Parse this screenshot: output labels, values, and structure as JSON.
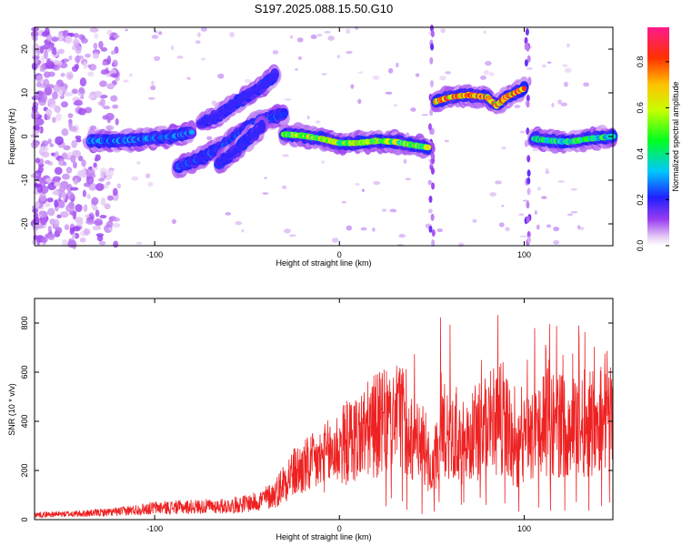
{
  "chart_data": [
    {
      "type": "heatmap",
      "title": "S197.2025.088.15.50.G10",
      "xlabel": "Height of straight line (km)",
      "ylabel": "Frequency (Hz)",
      "xlim": [
        -165,
        148
      ],
      "ylim": [
        -25,
        25
      ],
      "xticks": [
        -100,
        0,
        100
      ],
      "yticks": [
        -20,
        -10,
        0,
        10,
        20
      ],
      "colorbar": {
        "label": "Normalized spectral amplitude",
        "range": [
          0,
          0.95
        ],
        "ticks": [
          0.0,
          0.2,
          0.4,
          0.6,
          0.8
        ]
      },
      "ridges": [
        {
          "x": [
            -135,
            -120,
            -105,
            -90,
            -80
          ],
          "y": [
            -1,
            -1,
            -0.5,
            0,
            1
          ],
          "intensity": 0.3
        },
        {
          "x": [
            -88,
            -75,
            -62,
            -50,
            -40,
            -30
          ],
          "y": [
            -7,
            -5,
            -2,
            2,
            4,
            5
          ],
          "intensity": 0.25
        },
        {
          "x": [
            -65,
            -55,
            -48,
            -42
          ],
          "y": [
            -6,
            -3,
            0,
            2
          ],
          "intensity": 0.2
        },
        {
          "x": [
            -75,
            -65,
            -55,
            -40,
            -35
          ],
          "y": [
            3,
            5,
            8,
            12,
            14
          ],
          "intensity": 0.12
        },
        {
          "x": [
            -30,
            -20,
            -10,
            0,
            10,
            20,
            30,
            40,
            48
          ],
          "y": [
            0.5,
            0.2,
            -0.5,
            -1.5,
            -1.5,
            -1.0,
            -1.2,
            -2.0,
            -2.5
          ],
          "intensity": 0.65
        },
        {
          "x": [
            52,
            60,
            70,
            80,
            85,
            90,
            100
          ],
          "y": [
            8,
            9,
            9.5,
            9,
            7,
            9,
            11
          ],
          "intensity": 0.85
        },
        {
          "x": [
            105,
            115,
            125,
            135,
            148
          ],
          "y": [
            -0.5,
            -1,
            -1.2,
            -0.5,
            0
          ],
          "intensity": 0.5
        }
      ]
    },
    {
      "type": "line",
      "xlabel": "Height of straight line (km)",
      "ylabel": "SNR (10 * v/v)",
      "xlim": [
        -165,
        148
      ],
      "ylim": [
        0,
        900
      ],
      "xticks": [
        -100,
        0,
        100
      ],
      "yticks": [
        0,
        200,
        400,
        600,
        800
      ],
      "color": "#ee2222",
      "envelope": {
        "x": [
          -165,
          -140,
          -120,
          -100,
          -80,
          -60,
          -45,
          -35,
          -28,
          -20,
          -10,
          0,
          10,
          20,
          30,
          35,
          40,
          45,
          50,
          55,
          60,
          65,
          70,
          80,
          90,
          95,
          100,
          105,
          110,
          120,
          130,
          140,
          148
        ],
        "y": [
          25,
          30,
          40,
          60,
          65,
          70,
          90,
          130,
          220,
          260,
          300,
          370,
          420,
          480,
          500,
          520,
          400,
          380,
          200,
          480,
          460,
          380,
          420,
          480,
          520,
          300,
          400,
          430,
          500,
          480,
          480,
          520,
          600
        ]
      }
    }
  ]
}
